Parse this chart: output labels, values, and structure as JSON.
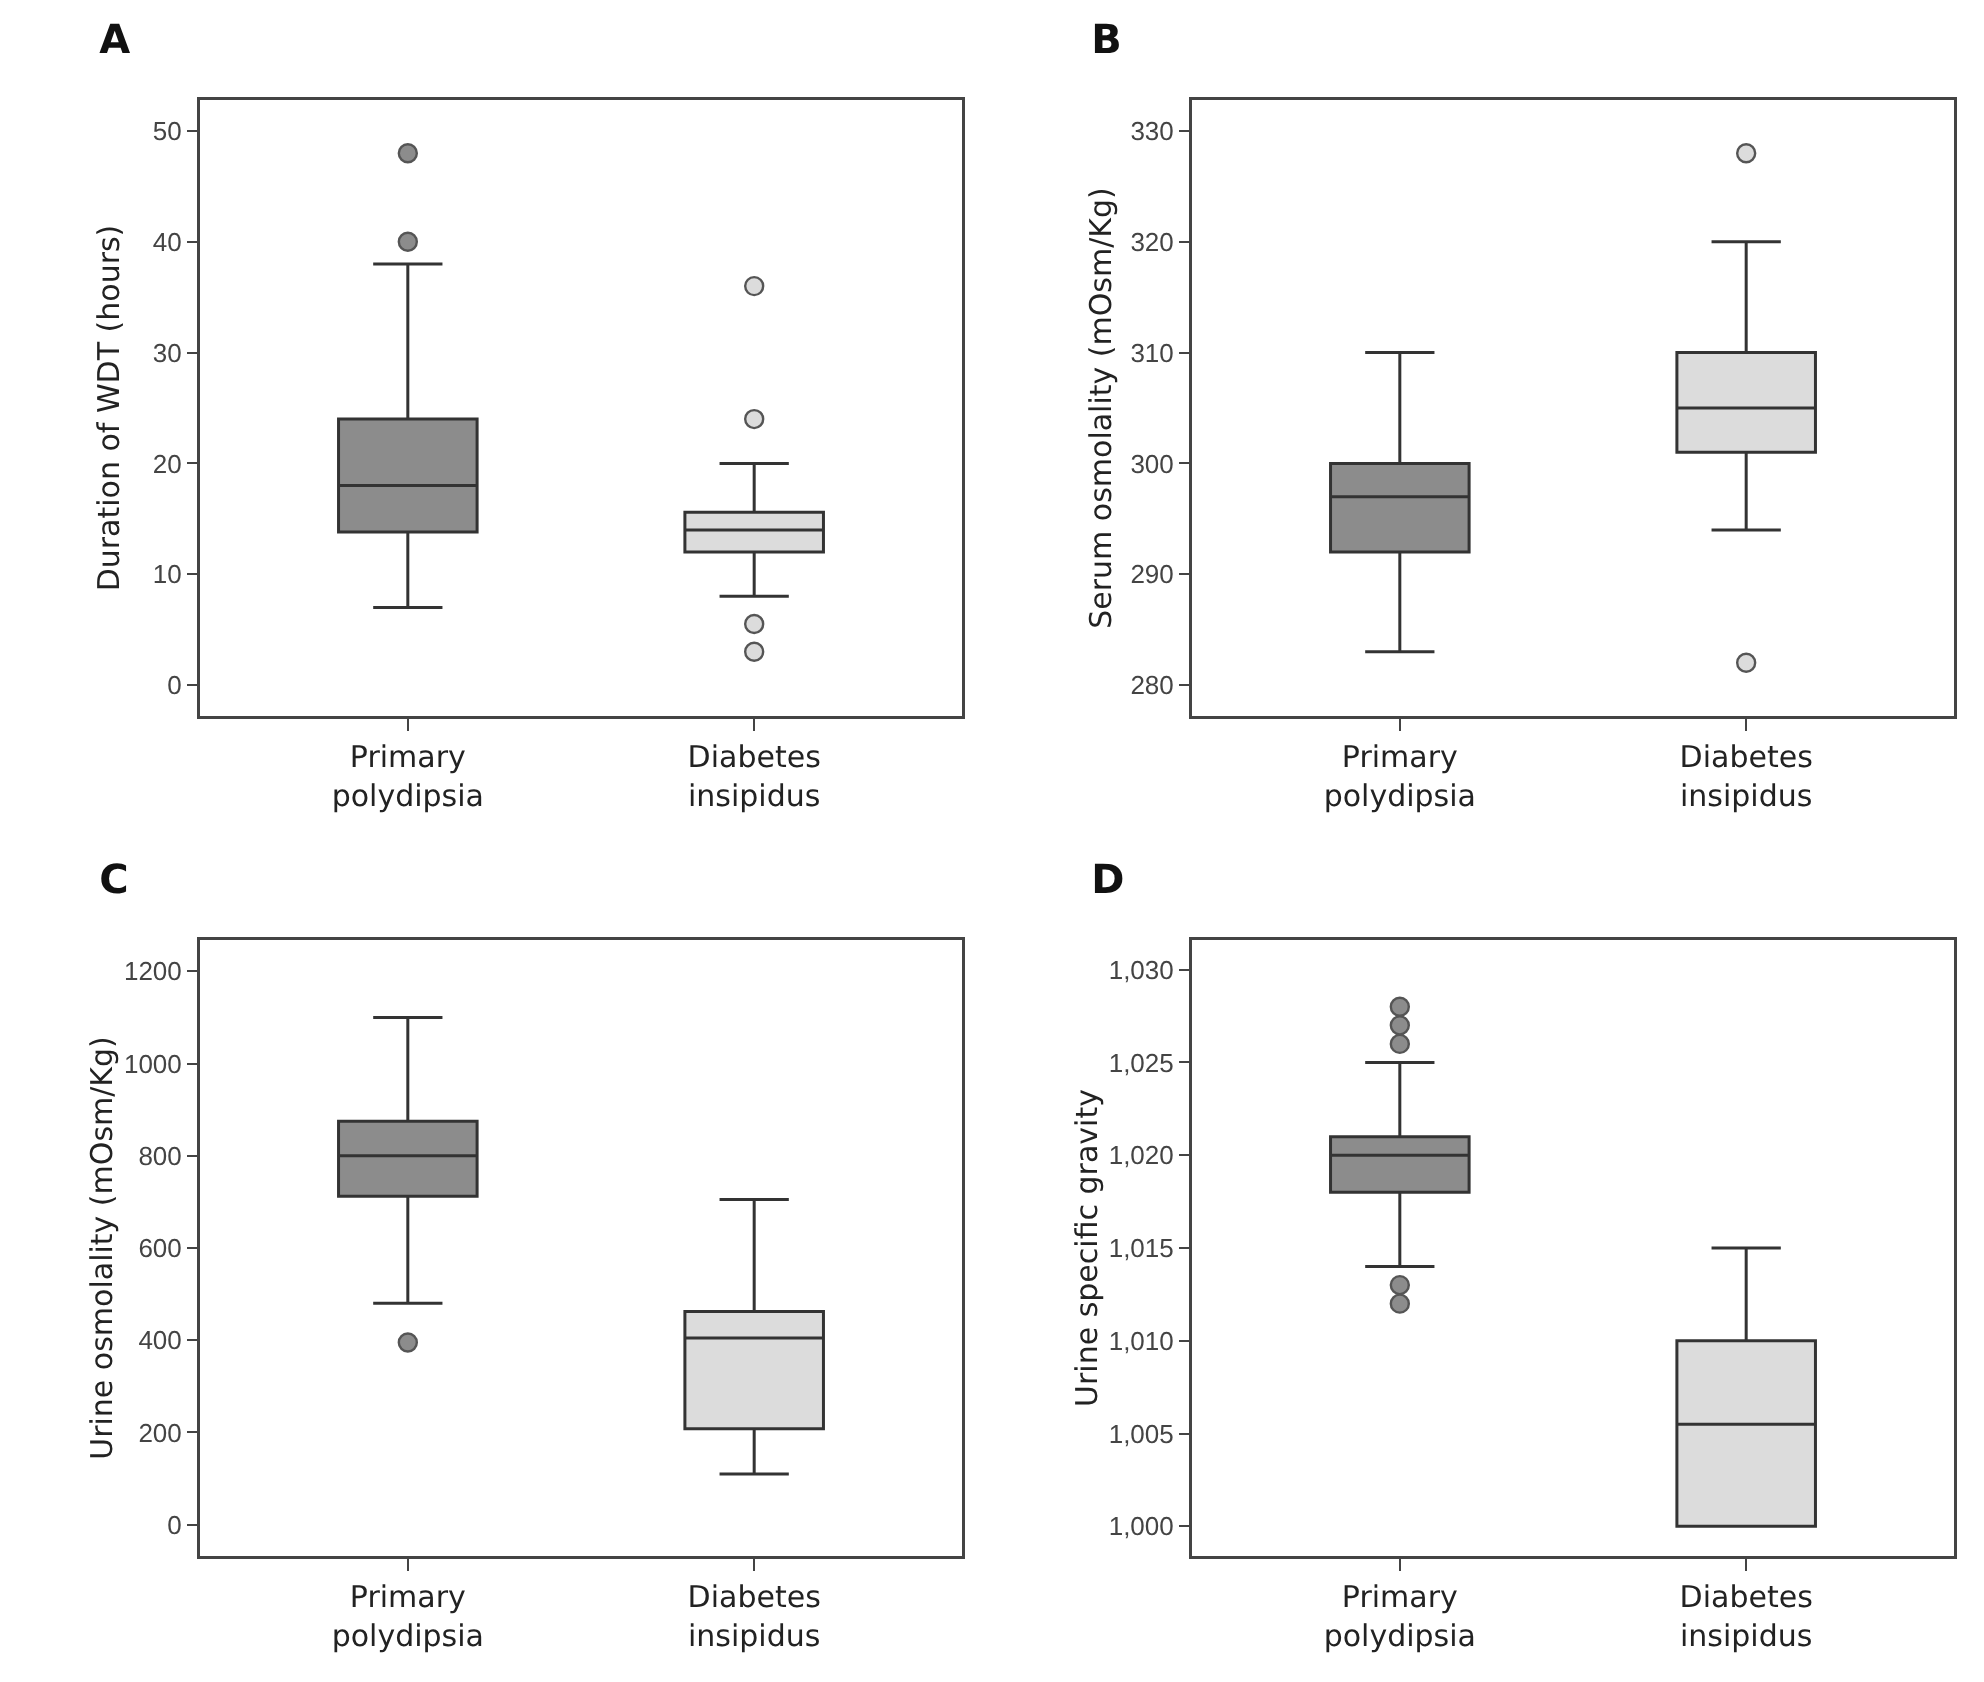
{
  "chart_data": [
    {
      "type": "box",
      "title": "A",
      "ylabel": "Duration of WDT (hours)",
      "categories": [
        "Primary polydipsia",
        "Diabetes insipidus"
      ],
      "colors": [
        "#8c8c8c",
        "#dcdcdc"
      ],
      "ylim": [
        -2.8,
        52.8
      ],
      "yticks": [
        0,
        10,
        20,
        30,
        40,
        50
      ],
      "grid": false,
      "legend": false,
      "marker": "circle",
      "boxes": [
        {
          "low": 7,
          "q1": 13.8,
          "median": 18,
          "q3": 24,
          "high": 38,
          "outliers": [
            40,
            48
          ]
        },
        {
          "low": 8,
          "q1": 12,
          "median": 14,
          "q3": 15.6,
          "high": 20,
          "outliers": [
            36,
            24,
            5.5,
            3
          ]
        }
      ]
    },
    {
      "type": "box",
      "title": "B",
      "ylabel": "Serum osmolality (mOsm/Kg)",
      "categories": [
        "Primary polydipsia",
        "Diabetes insipidus"
      ],
      "colors": [
        "#8c8c8c",
        "#dcdcdc"
      ],
      "ylim": [
        277.2,
        332.8
      ],
      "yticks": [
        280,
        290,
        300,
        310,
        320,
        330
      ],
      "grid": false,
      "legend": false,
      "marker": "circle",
      "boxes": [
        {
          "low": 283,
          "q1": 292,
          "median": 297,
          "q3": 300,
          "high": 310
        },
        {
          "low": 294,
          "q1": 301,
          "median": 305,
          "q3": 310,
          "high": 320,
          "outliers": [
            328,
            282
          ]
        }
      ]
    },
    {
      "type": "box",
      "title": "C",
      "ylabel": "Urine osmolality (mOsm/Kg)",
      "categories": [
        "Primary polydipsia",
        "Diabetes insipidus"
      ],
      "colors": [
        "#8c8c8c",
        "#dcdcdc"
      ],
      "ylim": [
        -68,
        1268
      ],
      "yticks": [
        0,
        200,
        400,
        600,
        800,
        1000,
        1200
      ],
      "grid": false,
      "legend": false,
      "marker": "circle",
      "boxes": [
        {
          "low": 480,
          "q1": 712,
          "median": 800,
          "q3": 875,
          "high": 1100,
          "outliers": [
            395
          ]
        },
        {
          "low": 110,
          "q1": 208,
          "median": 405,
          "q3": 462,
          "high": 705
        }
      ]
    },
    {
      "type": "box",
      "title": "D",
      "ylabel": "Urine specific gravity",
      "categories": [
        "Primary polydipsia",
        "Diabetes insipidus"
      ],
      "colors": [
        "#8c8c8c",
        "#dcdcdc"
      ],
      "ylim": [
        998.4,
        1031.6
      ],
      "yticks": [
        {
          "value": 1000,
          "label": "1,000"
        },
        {
          "value": 1005,
          "label": "1,005"
        },
        {
          "value": 1010,
          "label": "1,010"
        },
        {
          "value": 1015,
          "label": "1,015"
        },
        {
          "value": 1020,
          "label": "1,020"
        },
        {
          "value": 1025,
          "label": "1,025"
        },
        {
          "value": 1030,
          "label": "1,030"
        }
      ],
      "grid": false,
      "legend": false,
      "marker": "circle",
      "boxes": [
        {
          "low": 1014,
          "q1": 1018,
          "median": 1020,
          "q3": 1021,
          "high": 1025,
          "outliers": [
            1026,
            1027,
            1028,
            1013,
            1012
          ]
        },
        {
          "low": 1000,
          "q1": 1000,
          "median": 1005.5,
          "q3": 1010,
          "high": 1015
        }
      ]
    }
  ]
}
